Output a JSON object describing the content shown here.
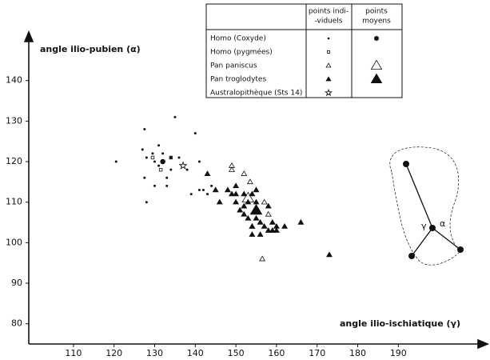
{
  "chart_data": {
    "type": "scatter",
    "xlabel": "angle ilio-ischiatique (γ)",
    "ylabel": "angle ilio-pubien (α)",
    "xlim": [
      99,
      211
    ],
    "xticks": [
      110,
      120,
      130,
      140,
      150,
      160,
      170,
      180,
      190
    ],
    "ylim": [
      75,
      151
    ],
    "yticks": [
      80,
      90,
      100,
      110,
      120,
      130,
      140
    ],
    "legend_headers": [
      [
        "points indi-",
        "-viduels"
      ],
      [
        "points",
        "moyens"
      ]
    ],
    "diagram_labels": [
      "γ",
      "α"
    ],
    "series": [
      {
        "name": "Homo (Coxyde)",
        "marker": "dot",
        "color": "#111",
        "x": [
          120.5,
          127.5,
          127,
          127.5,
          128,
          128,
          129.5,
          130,
          131,
          131,
          132,
          133,
          134,
          135,
          134,
          136,
          138,
          139,
          140,
          141,
          142,
          143,
          144,
          141,
          130,
          133
        ],
        "y": [
          120,
          128,
          123,
          116,
          110,
          121,
          122,
          120,
          124,
          119,
          122,
          116,
          118,
          131,
          121,
          121,
          118,
          112,
          127,
          113,
          113,
          112,
          114,
          120,
          114,
          114
        ],
        "mean": {
          "x": 132,
          "y": 120
        }
      },
      {
        "name": "Homo (pygmées)",
        "marker": "square",
        "color": "#111",
        "x": [
          129.5,
          131.5,
          134
        ],
        "y": [
          121,
          118,
          121
        ]
      },
      {
        "name": "Pan paniscus",
        "marker": "open-triangle",
        "color": "#111",
        "x": [
          149,
          149,
          152,
          153.5,
          157,
          158,
          156.5,
          154
        ],
        "y": [
          119,
          118,
          117,
          115,
          110,
          107,
          96,
          104
        ],
        "mean": {
          "x": 153,
          "y": 111
        }
      },
      {
        "name": "Pan troglodytes",
        "marker": "triangle",
        "color": "#111",
        "x": [
          143,
          145,
          146,
          148,
          149,
          150,
          150,
          151,
          152,
          152,
          152,
          153,
          154,
          154,
          154,
          155,
          155,
          155,
          156,
          156,
          157,
          158,
          158,
          159,
          159,
          160,
          160,
          162,
          166,
          173,
          150,
          153
        ],
        "y": [
          117,
          113,
          110,
          113,
          112,
          114,
          110,
          108,
          109,
          112,
          107,
          106,
          112,
          104,
          102,
          110,
          106,
          113,
          105,
          102,
          104,
          103,
          109,
          103,
          105,
          104,
          103,
          104,
          105,
          97,
          112,
          110
        ],
        "mean": {
          "x": 155,
          "y": 108
        }
      },
      {
        "name": "Australopithèque (Sts 14)",
        "marker": "star",
        "color": "#111",
        "x": [
          137
        ],
        "y": [
          119
        ]
      }
    ]
  }
}
